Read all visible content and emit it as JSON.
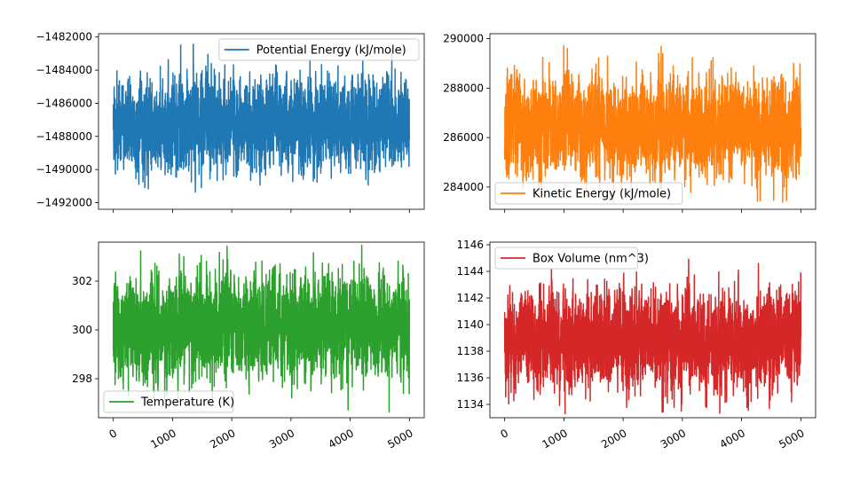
{
  "chart_data": [
    {
      "type": "line",
      "series": [
        {
          "name": "Potential Energy (kJ/mole)",
          "color": "#1f77b4"
        }
      ],
      "x": {
        "range": [
          0,
          5000
        ],
        "ticks": [
          0,
          1000,
          2000,
          3000,
          4000,
          5000
        ],
        "tick_labels": [],
        "tick_labels_shown": false
      },
      "ylim": [
        -1492400,
        -1481800
      ],
      "yticks": [
        -1482000,
        -1484000,
        -1486000,
        -1488000,
        -1490000,
        -1492000
      ],
      "ytick_labels": [
        "−1482000",
        "−1484000",
        "−1486000",
        "−1488000",
        "−1490000",
        "−1492000"
      ],
      "signal": {
        "mean": -1487300,
        "std": 1250,
        "min": -1491800,
        "max": -1482400,
        "seed": 11
      },
      "legend": "upper right",
      "grid": false
    },
    {
      "type": "line",
      "series": [
        {
          "name": "Kinetic Energy (kJ/mole)",
          "color": "#ff7f0e"
        }
      ],
      "x": {
        "range": [
          0,
          5000
        ],
        "ticks": [
          0,
          1000,
          2000,
          3000,
          4000,
          5000
        ],
        "tick_labels": [],
        "tick_labels_shown": false
      },
      "ylim": [
        283100,
        290200
      ],
      "yticks": [
        284000,
        286000,
        288000,
        290000
      ],
      "ytick_labels": [
        "284000",
        "286000",
        "288000",
        "290000"
      ],
      "signal": {
        "mean": 286400,
        "std": 900,
        "min": 283300,
        "max": 289800,
        "seed": 23
      },
      "legend": "lower left",
      "grid": false
    },
    {
      "type": "line",
      "series": [
        {
          "name": "Temperature (K)",
          "color": "#2ca02c"
        }
      ],
      "x": {
        "range": [
          0,
          5000
        ],
        "ticks": [
          0,
          1000,
          2000,
          3000,
          4000,
          5000
        ],
        "tick_labels": [
          "0",
          "1000",
          "2000",
          "3000",
          "4000",
          "5000"
        ],
        "tick_labels_shown": true
      },
      "ylim": [
        296.4,
        303.6
      ],
      "yticks": [
        298,
        300,
        302
      ],
      "ytick_labels": [
        "298",
        "300",
        "302"
      ],
      "signal": {
        "mean": 300.1,
        "std": 0.95,
        "min": 296.5,
        "max": 303.5,
        "seed": 37
      },
      "legend": "lower left",
      "grid": false
    },
    {
      "type": "line",
      "series": [
        {
          "name": "Box Volume (nm^3)",
          "color": "#d62728"
        }
      ],
      "x": {
        "range": [
          0,
          5000
        ],
        "ticks": [
          0,
          1000,
          2000,
          3000,
          4000,
          5000
        ],
        "tick_labels": [
          "0",
          "1000",
          "2000",
          "3000",
          "4000",
          "5000"
        ],
        "tick_labels_shown": true
      },
      "ylim": [
        1133.0,
        1146.2
      ],
      "yticks": [
        1134,
        1136,
        1138,
        1140,
        1142,
        1144,
        1146
      ],
      "ytick_labels": [
        "1134",
        "1136",
        "1138",
        "1140",
        "1142",
        "1144",
        "1146"
      ],
      "signal": {
        "mean": 1138.9,
        "std": 1.7,
        "min": 1133.3,
        "max": 1145.6,
        "seed": 53
      },
      "legend": "upper left",
      "grid": false
    }
  ]
}
